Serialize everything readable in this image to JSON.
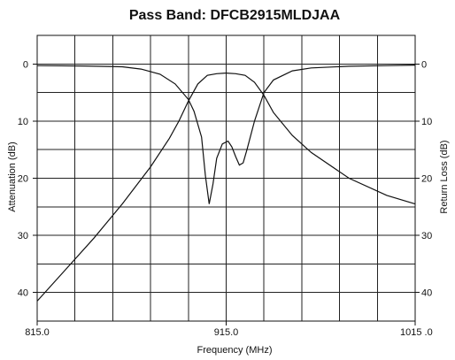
{
  "chart_data": {
    "type": "line",
    "title": "Pass Band: DFCB2915MLDJAA",
    "xlabel": "Frequency (MHz)",
    "ylabel_left": "Attenuation (dB)",
    "ylabel_right": "Return Loss (dB)",
    "xlim": [
      815,
      1015
    ],
    "ylim": [
      45,
      -5
    ],
    "grid": true,
    "x_grid_step": 20,
    "y_grid_step": 5,
    "x_tick_labels": [
      {
        "value": 815,
        "label": "815.0"
      },
      {
        "value": 915,
        "label": "915.0"
      },
      {
        "value": 1015,
        "label": "1015 .0"
      }
    ],
    "y_ticks_left": [
      0,
      10,
      20,
      30,
      40
    ],
    "y_ticks_right": [
      0,
      10,
      20,
      30,
      40
    ],
    "series": [
      {
        "x": [
          815,
          830,
          845,
          860,
          875,
          885,
          890,
          895,
          900,
          905,
          910,
          915,
          920,
          925,
          930,
          935,
          940,
          950,
          960,
          980,
          1000,
          1015
        ],
        "y": [
          41.5,
          36,
          30.5,
          24.5,
          18,
          13,
          10,
          6.5,
          3.5,
          2,
          1.7,
          1.6,
          1.7,
          2,
          3.2,
          5.5,
          8.5,
          12.5,
          15.5,
          20,
          23,
          24.5
        ]
      },
      {
        "x": [
          815,
          840,
          860,
          870,
          880,
          888,
          895,
          898,
          902,
          904,
          906,
          908,
          910,
          913,
          916,
          918,
          920,
          922,
          924,
          926,
          930,
          935,
          940,
          950,
          960,
          980,
          1000,
          1015
        ],
        "y": [
          0.3,
          0.35,
          0.5,
          0.9,
          1.8,
          3.5,
          6.2,
          8.3,
          12.8,
          19.5,
          24.5,
          21,
          16.5,
          14,
          13.5,
          14.5,
          16.2,
          17.7,
          17.3,
          15,
          10,
          5,
          2.8,
          1.2,
          0.7,
          0.4,
          0.3,
          0.2
        ]
      }
    ]
  }
}
